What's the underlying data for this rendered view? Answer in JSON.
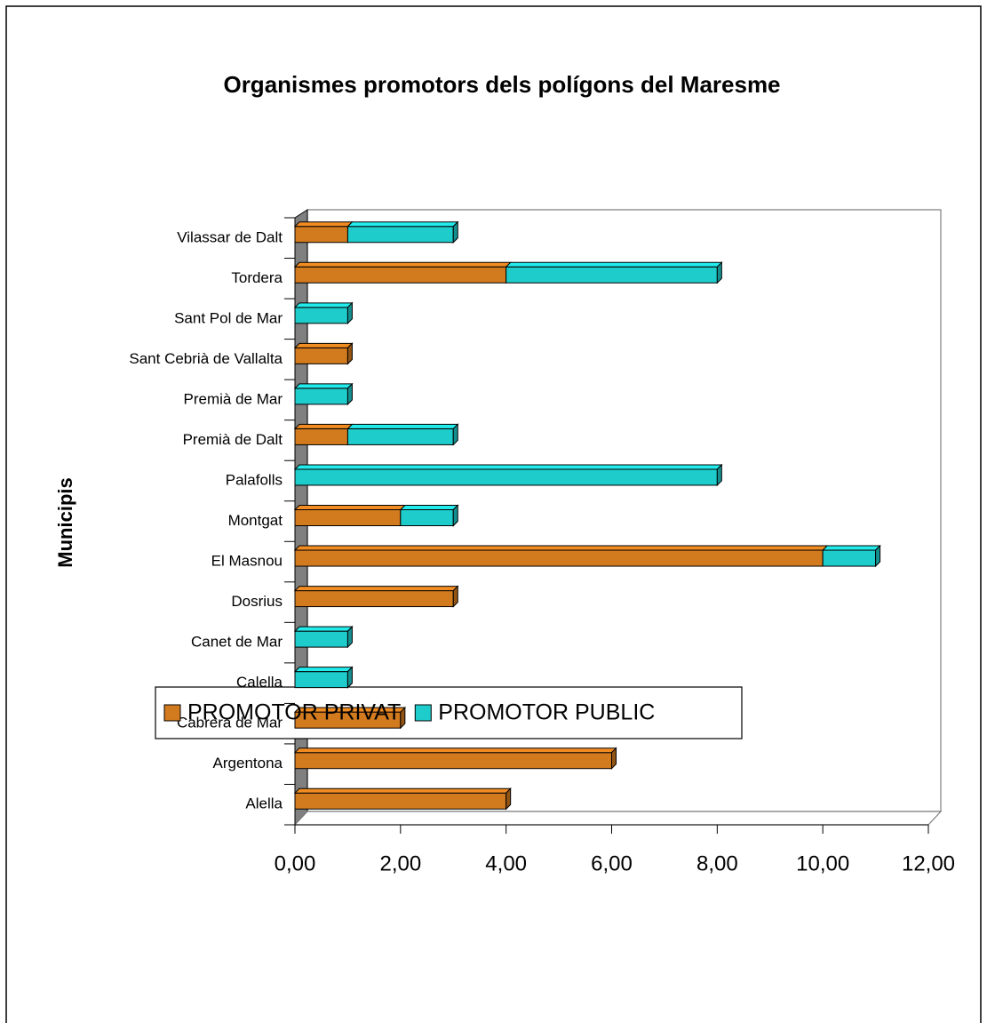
{
  "chart_data": {
    "type": "bar",
    "orientation": "horizontal",
    "stacked": true,
    "title": "Organismes promotors dels polígons del Maresme",
    "y_label": "Municipis",
    "categories": [
      "Alella",
      "Argentona",
      "Cabrera de Mar",
      "Calella",
      "Canet de Mar",
      "Dosrius",
      "El Masnou",
      "Montgat",
      "Palafolls",
      "Premià de Dalt",
      "Premià de Mar",
      "Sant Cebrià de Vallalta",
      "Sant Pol de Mar",
      "Tordera",
      "Vilassar de Dalt"
    ],
    "series": [
      {
        "name": "PROMOTOR PRIVAT",
        "color": "#d27a1e",
        "values": [
          4,
          6,
          2,
          0,
          0,
          3,
          10,
          2,
          0,
          1,
          0,
          1,
          0,
          4,
          1
        ]
      },
      {
        "name": "PROMOTOR PUBLIC",
        "color": "#1ecccc",
        "values": [
          0,
          0,
          0,
          1,
          1,
          0,
          1,
          1,
          8,
          2,
          1,
          0,
          1,
          4,
          2
        ]
      }
    ],
    "xlim": [
      0,
      12
    ],
    "xticks": [
      {
        "value": 0,
        "label": "0,00"
      },
      {
        "value": 2,
        "label": "2,00"
      },
      {
        "value": 4,
        "label": "4,00"
      },
      {
        "value": 6,
        "label": "6,00"
      },
      {
        "value": 8,
        "label": "8,00"
      },
      {
        "value": 10,
        "label": "10,00"
      },
      {
        "value": 12,
        "label": "12,00"
      }
    ],
    "legend": "bottom"
  }
}
